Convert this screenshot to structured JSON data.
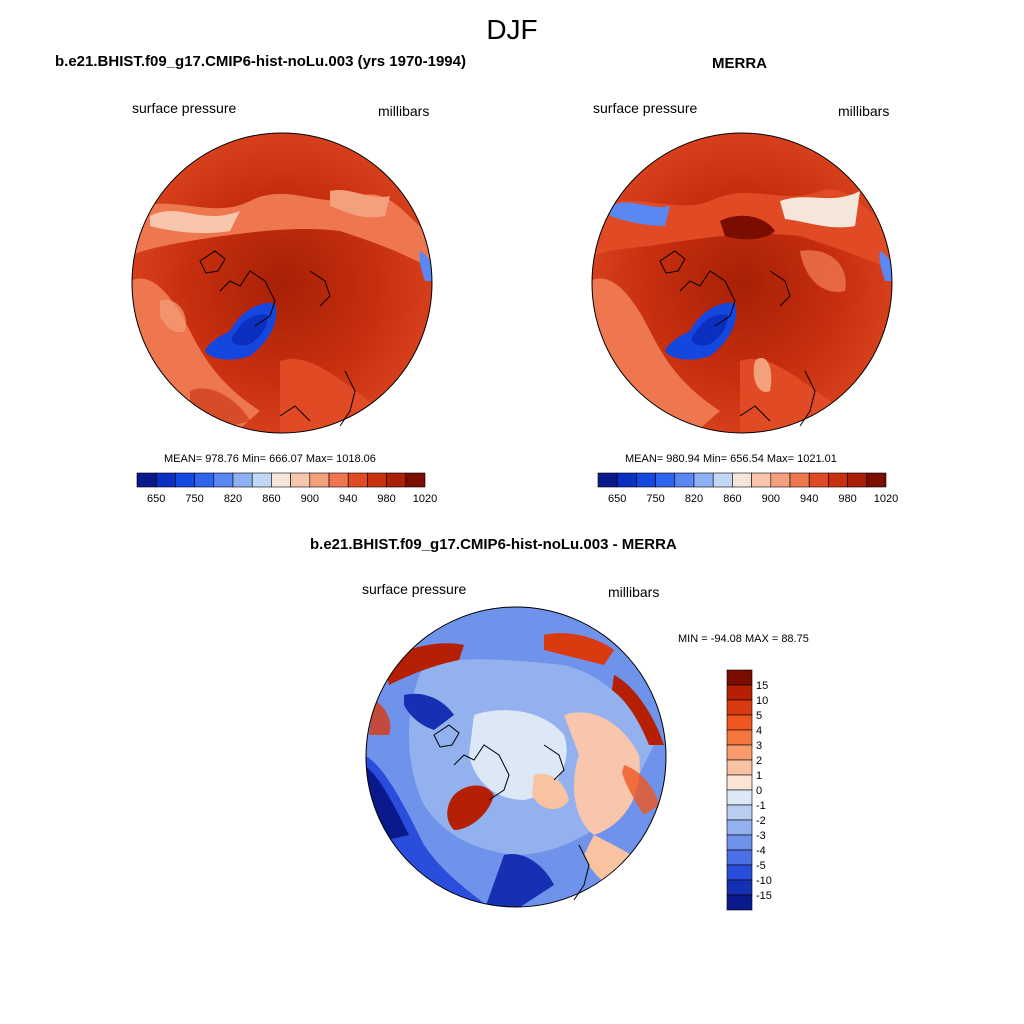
{
  "title": "DJF",
  "panels": {
    "left": {
      "title": "b.e21.BHIST.f09_g17.CMIP6-hist-noLu.003 (yrs 1970-1994)",
      "variable": "surface pressure",
      "units": "millibars",
      "stats": "MEAN= 978.76  Min= 666.07  Max= 1018.06"
    },
    "right": {
      "title": "MERRA",
      "variable": "surface pressure",
      "units": "millibars",
      "stats": "MEAN= 980.94  Min= 656.54  Max= 1021.01"
    },
    "diff": {
      "title": "b.e21.BHIST.f09_g17.CMIP6-hist-noLu.003 - MERRA",
      "variable": "surface pressure",
      "units": "millibars",
      "stats": "MIN = -94.08 MAX =  88.75"
    }
  },
  "colorbar_abs": {
    "labels": [
      "650",
      "750",
      "820",
      "860",
      "900",
      "940",
      "980",
      "1020"
    ],
    "colors": [
      "#0a1a8c",
      "#0d2fbf",
      "#1446e0",
      "#2d63ef",
      "#5a87f2",
      "#8fb0f4",
      "#c2d6f6",
      "#f5e6dc",
      "#f7c6ad",
      "#f3a07c",
      "#ee774f",
      "#e04a25",
      "#c8300f",
      "#a82005",
      "#7a0d00"
    ]
  },
  "colorbar_diff": {
    "labels": [
      "15",
      "10",
      "5",
      "4",
      "3",
      "2",
      "1",
      "0",
      "-1",
      "-2",
      "-3",
      "-4",
      "-5",
      "-10",
      "-15"
    ],
    "colors": [
      "#7a0d00",
      "#b51f04",
      "#d93a10",
      "#f0561f",
      "#f5763f",
      "#f79a6c",
      "#f9c3a2",
      "#fbe4d6",
      "#dde8f6",
      "#b9cdf3",
      "#93b1ef",
      "#6f92eb",
      "#4b70e7",
      "#2a4ddb",
      "#1630b4",
      "#0a1a8c"
    ]
  },
  "chart_data": [
    {
      "type": "heatmap",
      "title": "b.e21.BHIST.f09_g17.CMIP6-hist-noLu.003 (yrs 1970-1994)",
      "variable": "surface pressure",
      "units": "millibars",
      "stats": {
        "mean": 978.76,
        "min": 666.07,
        "max": 1018.06
      },
      "colorbar_ticks": [
        650,
        750,
        820,
        860,
        900,
        940,
        980,
        1020
      ]
    },
    {
      "type": "heatmap",
      "title": "MERRA",
      "variable": "surface pressure",
      "units": "millibars",
      "stats": {
        "mean": 980.94,
        "min": 656.54,
        "max": 1021.01
      },
      "colorbar_ticks": [
        650,
        750,
        820,
        860,
        900,
        940,
        980,
        1020
      ]
    },
    {
      "type": "heatmap",
      "title": "b.e21.BHIST.f09_g17.CMIP6-hist-noLu.003 - MERRA",
      "variable": "surface pressure",
      "units": "millibars",
      "stats": {
        "min": -94.08,
        "max": 88.75
      },
      "colorbar_ticks": [
        15,
        10,
        5,
        4,
        3,
        2,
        1,
        0,
        -1,
        -2,
        -3,
        -4,
        -5,
        -10,
        -15
      ]
    }
  ]
}
